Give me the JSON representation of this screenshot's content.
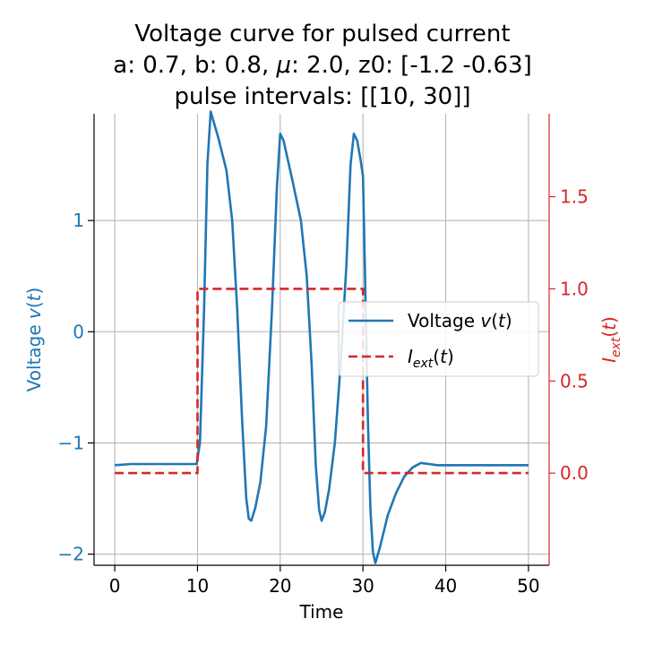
{
  "chart_data": {
    "type": "line",
    "title_lines": [
      "Voltage curve for pulsed current",
      "a: 0.7, b: 0.8, μ: 2.0, z0: [-1.2  -0.63]",
      "pulse intervals: [[10, 30]]"
    ],
    "xlabel": "Time",
    "ylabel_left": "Voltage v(t)",
    "ylabel_right": "I_ext(t)",
    "xlim": [
      -2.5,
      52.5
    ],
    "ylim_left": [
      -2.1,
      1.96
    ],
    "ylim_right": [
      -0.5,
      1.95
    ],
    "x_ticks": [
      0,
      10,
      20,
      30,
      40,
      50
    ],
    "y_left_ticks": [
      -2,
      -1,
      0,
      1
    ],
    "y_right_ticks": [
      0.0,
      0.5,
      1.0,
      1.5
    ],
    "grid": true,
    "legend_position": "center-right",
    "colors": {
      "voltage": "#1f77b4",
      "current": "#d62728"
    },
    "series": [
      {
        "name": "Voltage v(t)",
        "axis": "left",
        "style": "solid",
        "x": [
          0,
          2,
          4,
          6,
          8,
          9.9,
          10.3,
          10.8,
          11.2,
          11.6,
          12.5,
          13.5,
          14.2,
          14.8,
          15.4,
          15.9,
          16.2,
          16.5,
          17,
          17.6,
          18.3,
          19,
          19.6,
          20,
          20.4,
          21.5,
          22.5,
          23.2,
          23.8,
          24.3,
          24.7,
          25,
          25.4,
          25.9,
          26.6,
          27.3,
          28,
          28.5,
          28.9,
          29.3,
          29.7,
          30,
          30.3,
          30.6,
          30.9,
          31.2,
          31.5,
          32,
          32.5,
          33,
          34,
          35,
          36,
          37,
          38,
          39,
          40,
          42,
          45,
          50
        ],
        "values": [
          -1.2,
          -1.19,
          -1.19,
          -1.19,
          -1.19,
          -1.19,
          -1.0,
          0.2,
          1.5,
          1.98,
          1.75,
          1.45,
          1.0,
          0.2,
          -0.8,
          -1.5,
          -1.68,
          -1.7,
          -1.58,
          -1.35,
          -0.85,
          0.2,
          1.3,
          1.78,
          1.72,
          1.35,
          1.0,
          0.5,
          -0.3,
          -1.2,
          -1.6,
          -1.7,
          -1.62,
          -1.42,
          -1.0,
          -0.3,
          0.6,
          1.5,
          1.78,
          1.72,
          1.55,
          1.4,
          0.3,
          -0.8,
          -1.6,
          -1.98,
          -2.08,
          -1.95,
          -1.8,
          -1.65,
          -1.45,
          -1.3,
          -1.22,
          -1.18,
          -1.19,
          -1.2,
          -1.2,
          -1.2,
          -1.2,
          -1.2
        ]
      },
      {
        "name": "I_ext(t)",
        "axis": "right",
        "style": "dashed",
        "x": [
          0,
          10,
          10,
          30,
          30,
          50
        ],
        "values": [
          0,
          0,
          1,
          1,
          0,
          0
        ]
      }
    ]
  }
}
